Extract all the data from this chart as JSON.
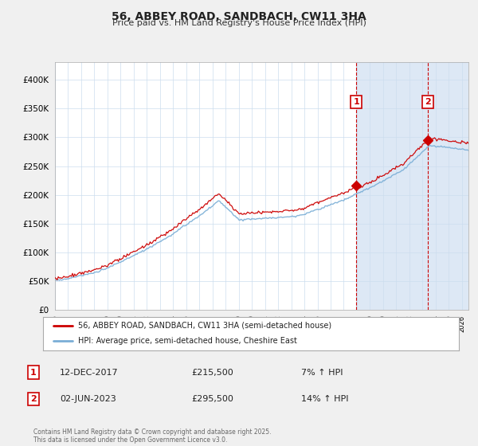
{
  "title": "56, ABBEY ROAD, SANDBACH, CW11 3HA",
  "subtitle": "Price paid vs. HM Land Registry's House Price Index (HPI)",
  "fig_bg_color": "#f0f0f0",
  "plot_bg_color": "#ffffff",
  "shade_color": "#dde8f5",
  "legend_label_red": "56, ABBEY ROAD, SANDBACH, CW11 3HA (semi-detached house)",
  "legend_label_blue": "HPI: Average price, semi-detached house, Cheshire East",
  "annotation1_date": "12-DEC-2017",
  "annotation1_price": 215500,
  "annotation1_hpi": "7% ↑ HPI",
  "annotation2_date": "02-JUN-2023",
  "annotation2_price": 295500,
  "annotation2_hpi": "14% ↑ HPI",
  "footnote": "Contains HM Land Registry data © Crown copyright and database right 2025.\nThis data is licensed under the Open Government Licence v3.0.",
  "ylabel_ticks": [
    0,
    50000,
    100000,
    150000,
    200000,
    250000,
    300000,
    350000,
    400000
  ],
  "ylim": [
    0,
    430000
  ],
  "xlim_start": 1995.0,
  "xlim_end": 2026.5,
  "red_color": "#cc0000",
  "blue_color": "#7aaed6",
  "vline_color": "#cc0000",
  "grid_color": "#ccddee",
  "anno_border_color": "#cc0000",
  "sale1_year": 2017.958,
  "sale2_year": 2023.417,
  "sale1_value": 215500,
  "sale2_value": 295500
}
